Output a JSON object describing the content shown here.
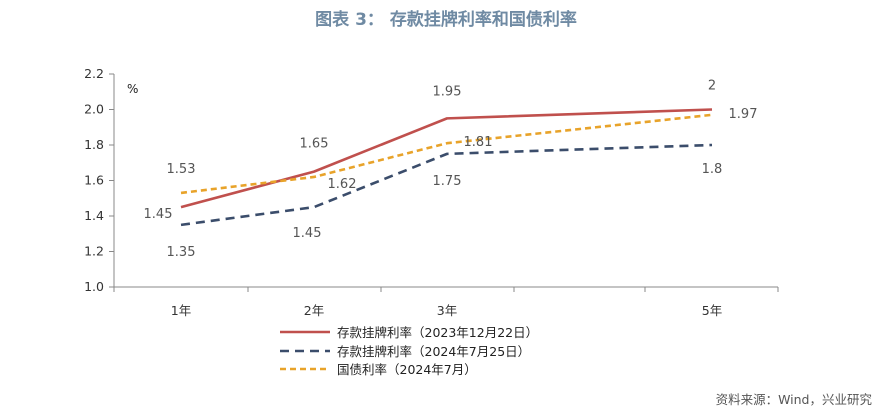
{
  "title": "图表 3：  存款挂牌利率和国债利率",
  "source": "资料来源：Wind，兴业研究",
  "colors": {
    "title": "#6f8aa3",
    "series": [
      "#c0504d",
      "#3b4d6b",
      "#e8a32a"
    ],
    "axis": "#888888"
  },
  "chart_data": {
    "type": "line",
    "unit_label": "%",
    "x_numeric": [
      1,
      2,
      3,
      5
    ],
    "categories": [
      "1年",
      "2年",
      "3年",
      "5年"
    ],
    "ylim": [
      1.0,
      2.2
    ],
    "yticks": [
      "1.0",
      "1.2",
      "1.4",
      "1.6",
      "1.8",
      "2.0",
      "2.2"
    ],
    "ytick_values": [
      1.0,
      1.2,
      1.4,
      1.6,
      1.8,
      2.0,
      2.2
    ],
    "grid": false,
    "legend_position": "bottom",
    "series": [
      {
        "name": "存款挂牌利率（2023年12月22日）",
        "values": [
          1.45,
          1.65,
          1.95,
          2.0
        ],
        "labels": [
          "1.45",
          "1.65",
          "1.95",
          "2"
        ],
        "style": "solid"
      },
      {
        "name": "存款挂牌利率（2024年7月25日）",
        "values": [
          1.35,
          1.45,
          1.75,
          1.8
        ],
        "labels": [
          "1.35",
          "1.45",
          "1.75",
          "1.8"
        ],
        "style": "dashed"
      },
      {
        "name": "国债利率（2024年7月）",
        "values": [
          1.53,
          1.62,
          1.81,
          1.97
        ],
        "labels": [
          "1.53",
          "1.62",
          "1.81",
          "1.97"
        ],
        "style": "dashed"
      }
    ]
  }
}
